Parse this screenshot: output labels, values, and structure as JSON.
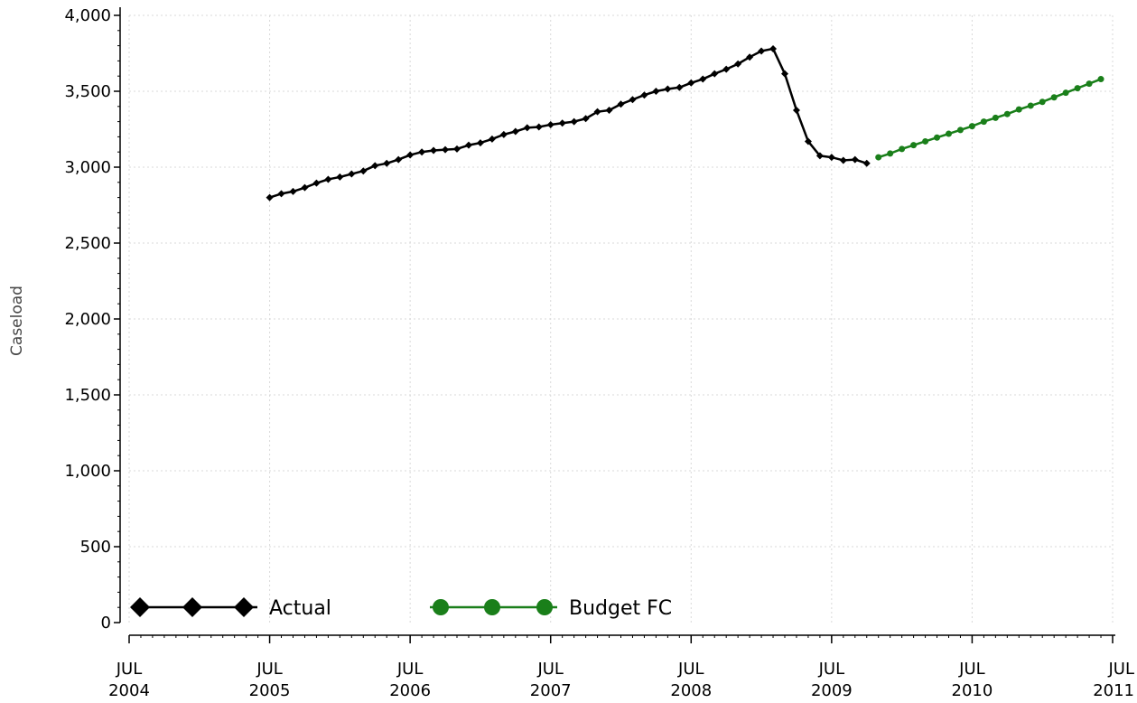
{
  "chart_data": {
    "type": "line",
    "ylabel": "Caseload",
    "xlabel": "",
    "ylim": [
      0,
      4000
    ],
    "y_ticks": [
      0,
      500,
      1000,
      1500,
      2000,
      2500,
      3000,
      3500,
      4000
    ],
    "y_tick_labels": [
      "0",
      "500",
      "1,000",
      "1,500",
      "2,000",
      "2,500",
      "3,000",
      "3,500",
      "4,000"
    ],
    "x_range": [
      "2004-07",
      "2011-07"
    ],
    "x_ticks": [
      "2004-07",
      "2005-07",
      "2006-07",
      "2007-07",
      "2008-07",
      "2009-07",
      "2010-07",
      "2011-07"
    ],
    "x_tick_labels": [
      {
        "month": "JUL",
        "year": "2004"
      },
      {
        "month": "JUL",
        "year": "2005"
      },
      {
        "month": "JUL",
        "year": "2006"
      },
      {
        "month": "JUL",
        "year": "2007"
      },
      {
        "month": "JUL",
        "year": "2008"
      },
      {
        "month": "JUL",
        "year": "2009"
      },
      {
        "month": "JUL",
        "year": "2010"
      },
      {
        "month": "JUL",
        "year": "2011"
      }
    ],
    "grid": true,
    "legend_position": "bottom-left",
    "series": [
      {
        "name": "Actual",
        "color": "#000000",
        "marker": "diamond",
        "x": [
          "2005-07",
          "2005-08",
          "2005-09",
          "2005-10",
          "2005-11",
          "2005-12",
          "2006-01",
          "2006-02",
          "2006-03",
          "2006-04",
          "2006-05",
          "2006-06",
          "2006-07",
          "2006-08",
          "2006-09",
          "2006-10",
          "2006-11",
          "2006-12",
          "2007-01",
          "2007-02",
          "2007-03",
          "2007-04",
          "2007-05",
          "2007-06",
          "2007-07",
          "2007-08",
          "2007-09",
          "2007-10",
          "2007-11",
          "2007-12",
          "2008-01",
          "2008-02",
          "2008-03",
          "2008-04",
          "2008-05",
          "2008-06",
          "2008-07",
          "2008-08",
          "2008-09",
          "2008-10",
          "2008-11",
          "2008-12",
          "2009-01",
          "2009-02",
          "2009-03",
          "2009-04",
          "2009-05",
          "2009-06",
          "2009-07",
          "2009-08",
          "2009-09",
          "2009-10"
        ],
        "y": [
          2800,
          2825,
          2840,
          2865,
          2895,
          2920,
          2935,
          2955,
          2975,
          3010,
          3025,
          3050,
          3080,
          3100,
          3110,
          3115,
          3120,
          3145,
          3160,
          3185,
          3215,
          3235,
          3260,
          3265,
          3280,
          3290,
          3300,
          3320,
          3365,
          3375,
          3415,
          3445,
          3475,
          3500,
          3515,
          3525,
          3555,
          3580,
          3615,
          3645,
          3680,
          3725,
          3765,
          3780,
          3615,
          3375,
          3170,
          3075,
          3065,
          3045,
          3050,
          3025
        ]
      },
      {
        "name": "Budget FC",
        "color": "#1a7f1a",
        "marker": "circle",
        "x": [
          "2009-11",
          "2009-12",
          "2010-01",
          "2010-02",
          "2010-03",
          "2010-04",
          "2010-05",
          "2010-06",
          "2010-07",
          "2010-08",
          "2010-09",
          "2010-10",
          "2010-11",
          "2010-12",
          "2011-01",
          "2011-02",
          "2011-03",
          "2011-04",
          "2011-05",
          "2011-06"
        ],
        "y": [
          3065,
          3090,
          3120,
          3145,
          3170,
          3195,
          3220,
          3245,
          3270,
          3300,
          3325,
          3350,
          3380,
          3405,
          3430,
          3460,
          3490,
          3520,
          3550,
          3580
        ]
      }
    ]
  }
}
